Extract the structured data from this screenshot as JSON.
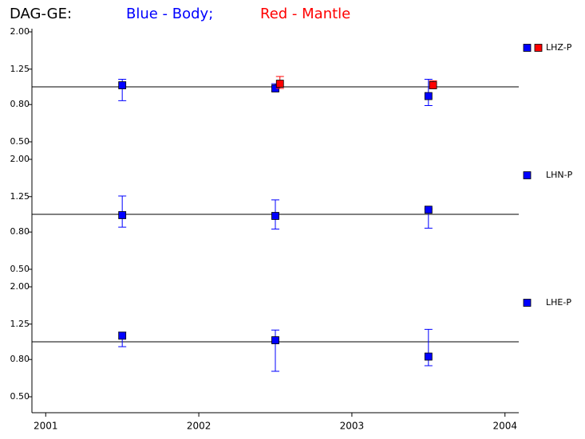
{
  "title": {
    "station": "DAG-GE:",
    "blue": "Blue - Body;",
    "red": "Red - Mantle"
  },
  "chart_data": [
    {
      "type": "errorbar",
      "label": "LHZ-P",
      "log_y": true,
      "hline": 1,
      "xlim": [
        2000.91,
        2004.09
      ],
      "ylim": [
        0.5,
        2
      ],
      "yticks": [
        {
          "value": 0.5,
          "label": "0.50"
        },
        {
          "value": 0.8,
          "label": "0.80"
        },
        {
          "value": 1.25,
          "label": "1.25"
        },
        {
          "value": 2,
          "label": "2.00"
        }
      ],
      "series": [
        {
          "color": "#0000ff",
          "x": [
            2001.5,
            2002.5,
            2003.5
          ],
          "values": [
            1.02,
            0.98,
            0.89
          ],
          "lower": [
            0.84,
            0.95,
            0.79
          ],
          "upper": [
            1.1,
            1.04,
            1.1
          ]
        },
        {
          "color": "#ff0000",
          "x": [
            2002.53,
            2003.53
          ],
          "values": [
            1.04,
            1.02
          ],
          "lower": [
            0.98,
            0.98
          ],
          "upper": [
            1.14,
            1.08
          ]
        }
      ]
    },
    {
      "type": "errorbar",
      "label": "LHN-P",
      "log_y": true,
      "hline": 1,
      "xlim": [
        2000.91,
        2004.09
      ],
      "ylim": [
        0.5,
        2
      ],
      "yticks": [
        {
          "value": 0.5,
          "label": "0.50"
        },
        {
          "value": 0.8,
          "label": "0.80"
        },
        {
          "value": 1.25,
          "label": "1.25"
        },
        {
          "value": 2,
          "label": "2.00"
        }
      ],
      "series": [
        {
          "color": "#0000ff",
          "x": [
            2001.5,
            2002.5,
            2003.5
          ],
          "values": [
            0.99,
            0.98,
            1.06
          ],
          "lower": [
            0.85,
            0.83,
            0.84
          ],
          "upper": [
            1.26,
            1.2,
            1.07
          ]
        }
      ]
    },
    {
      "type": "errorbar",
      "label": "LHE-P",
      "log_y": true,
      "hline": 1,
      "xlim": [
        2000.91,
        2004.09
      ],
      "ylim": [
        0.5,
        2
      ],
      "xticks": [
        {
          "value": 2001,
          "label": "2001"
        },
        {
          "value": 2002,
          "label": "2002"
        },
        {
          "value": 2003,
          "label": "2003"
        },
        {
          "value": 2004,
          "label": "2004"
        }
      ],
      "yticks": [
        {
          "value": 0.5,
          "label": "0.50"
        },
        {
          "value": 0.8,
          "label": "0.80"
        },
        {
          "value": 1.25,
          "label": "1.25"
        },
        {
          "value": 2,
          "label": "2.00"
        }
      ],
      "series": [
        {
          "color": "#0000ff",
          "x": [
            2001.5,
            2002.5,
            2003.5
          ],
          "values": [
            1.08,
            1.02,
            0.83
          ],
          "lower": [
            0.94,
            0.69,
            0.74
          ],
          "upper": [
            1.13,
            1.16,
            1.17
          ]
        }
      ]
    }
  ]
}
